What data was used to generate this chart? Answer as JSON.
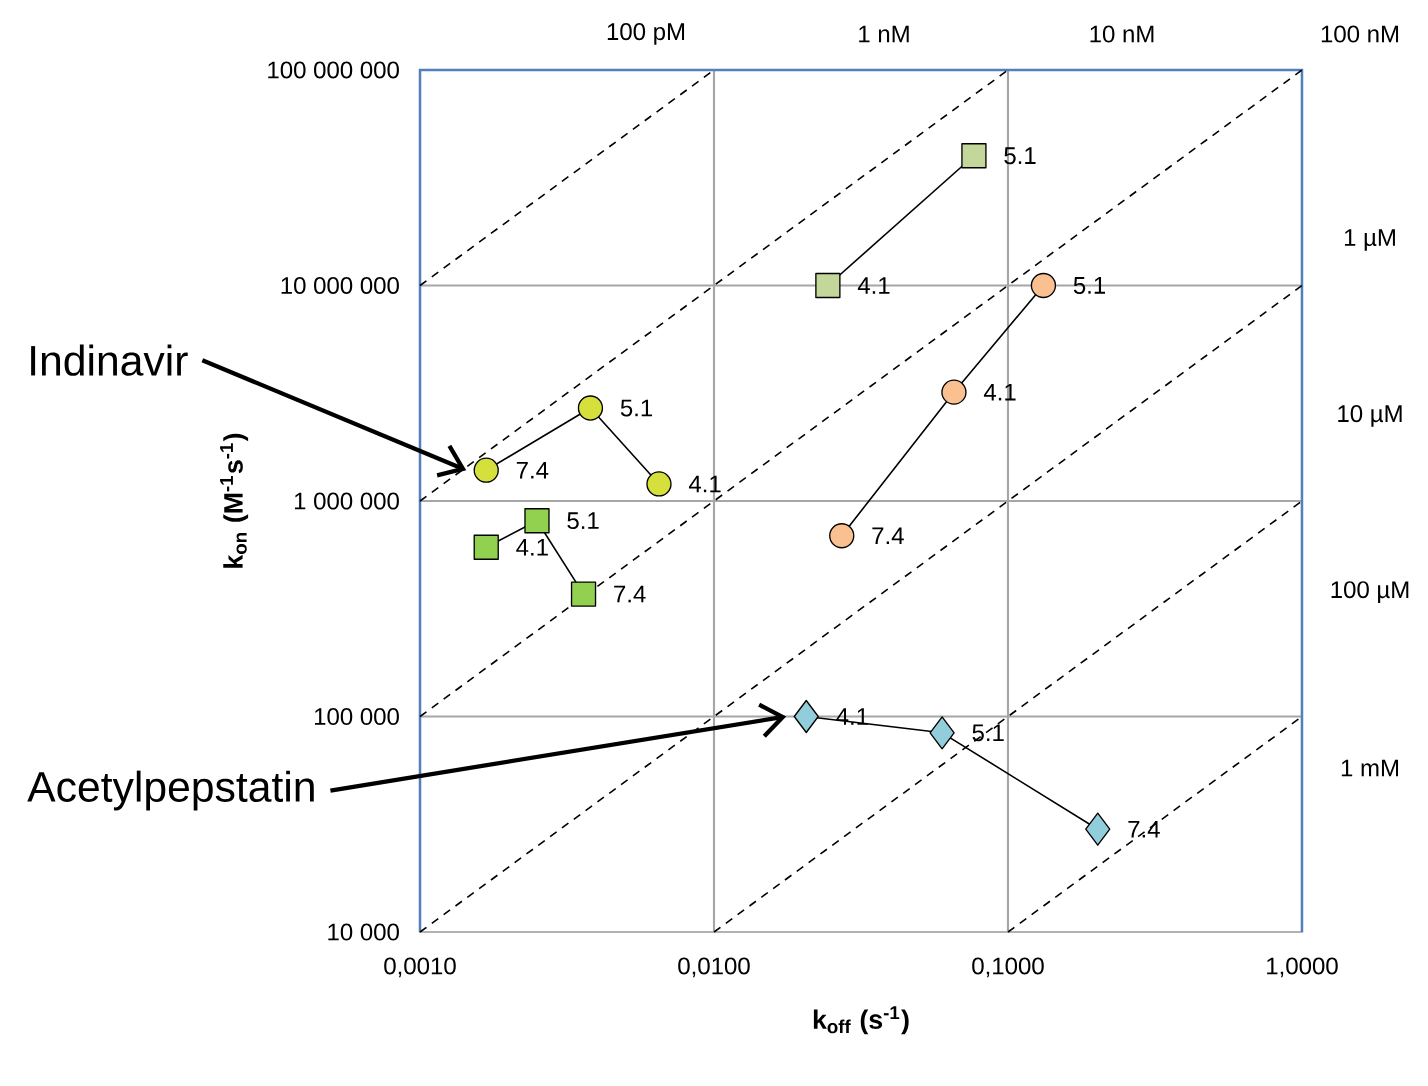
{
  "chart_data": {
    "type": "line",
    "xlabel": "k$_{off}$ (s$^{-1}$)",
    "ylabel": "k$_{on}$ (M$^{-1}$s$^{-1}$)",
    "log": "xy",
    "grid": true,
    "xlim": [
      0.001,
      1
    ],
    "ylim": [
      10000,
      100000000
    ],
    "xticks": [
      {
        "value": 0.001,
        "label": "0,0010"
      },
      {
        "value": 0.01,
        "label": "0,0100"
      },
      {
        "value": 0.1,
        "label": "0,1000"
      },
      {
        "value": 1,
        "label": "1,0000"
      }
    ],
    "yticks": [
      {
        "value": 10000,
        "label": "10 000"
      },
      {
        "value": 100000,
        "label": "100 000"
      },
      {
        "value": 1000000,
        "label": "1 000 000"
      },
      {
        "value": 10000000,
        "label": "10 000 000"
      },
      {
        "value": 100000000,
        "label": "100 000 000"
      }
    ],
    "series": [
      {
        "type": "line",
        "line_style": "dashed",
        "marker": "none",
        "color": "#000000",
        "x": [
          0.001,
          0.01
        ],
        "values": [
          10000000,
          100000000
        ]
      },
      {
        "type": "line",
        "line_style": "dashed",
        "marker": "none",
        "color": "#000000",
        "x": [
          0.001,
          0.1
        ],
        "values": [
          1000000,
          100000000
        ]
      },
      {
        "type": "line",
        "line_style": "dashed",
        "marker": "none",
        "color": "#000000",
        "x": [
          0.001,
          1
        ],
        "values": [
          100000,
          100000000
        ]
      },
      {
        "type": "line",
        "line_style": "dashed",
        "marker": "none",
        "color": "#000000",
        "x": [
          0.001,
          1
        ],
        "values": [
          10000,
          10000000
        ]
      },
      {
        "type": "line",
        "line_style": "dashed",
        "marker": "none",
        "color": "#000000",
        "x": [
          0.01,
          1
        ],
        "values": [
          10000,
          1000000
        ]
      },
      {
        "type": "line",
        "line_style": "dashed",
        "marker": "none",
        "color": "#000000",
        "x": [
          0.1,
          1
        ],
        "values": [
          10000,
          100000
        ]
      },
      {
        "type": "line",
        "name": "Indinavir",
        "marker": "circle",
        "color": "#d6e03c",
        "x": [
          0.00168,
          0.0038,
          0.0065
        ],
        "values": [
          1390000,
          2700000,
          1200000
        ]
      },
      {
        "type": "line",
        "marker": "square",
        "color": "#92d050",
        "x": [
          0.00168,
          0.0025,
          0.0036
        ],
        "values": [
          610000,
          810000,
          370000
        ]
      },
      {
        "type": "line",
        "marker": "square",
        "color": "#c4d79b",
        "x": [
          0.0244,
          0.0766
        ],
        "values": [
          10000000,
          40000000
        ]
      },
      {
        "type": "line",
        "marker": "circle",
        "color": "#fac090",
        "x": [
          0.132,
          0.0655,
          0.0272
        ],
        "values": [
          10000000,
          3200000,
          690000
        ]
      },
      {
        "type": "line",
        "name": "Acetylpepstatin",
        "marker": "diamond",
        "color": "#92cddc",
        "x": [
          0.0206,
          0.0597,
          0.202
        ],
        "values": [
          100000,
          84000,
          30000
        ]
      }
    ],
    "annotations": [
      {
        "text": "7.4",
        "x": 0.00168,
        "y": 1390000
      },
      {
        "text": "5.1",
        "x": 0.0038,
        "y": 2700000
      },
      {
        "text": "4.1",
        "x": 0.0065,
        "y": 1200000
      },
      {
        "text": "4.1",
        "x": 0.00168,
        "y": 610000
      },
      {
        "text": "5.1",
        "x": 0.0025,
        "y": 810000
      },
      {
        "text": "7.4",
        "x": 0.0036,
        "y": 370000
      },
      {
        "text": "4.1",
        "x": 0.0244,
        "y": 10000000
      },
      {
        "text": "5.1",
        "x": 0.0766,
        "y": 40000000
      },
      {
        "text": "5.1",
        "x": 0.132,
        "y": 10000000
      },
      {
        "text": "4.1",
        "x": 0.0655,
        "y": 3200000
      },
      {
        "text": "7.4",
        "x": 0.0272,
        "y": 690000
      },
      {
        "text": "4.1",
        "x": 0.0206,
        "y": 100000
      },
      {
        "text": "5.1",
        "x": 0.0597,
        "y": 84000
      },
      {
        "text": "7.4",
        "x": 0.202,
        "y": 30000
      },
      "100 pM",
      "1 nM",
      "10 nM",
      "100 nM",
      "1 µM",
      "10 µM",
      "100 µM",
      "1 mM"
    ]
  }
}
